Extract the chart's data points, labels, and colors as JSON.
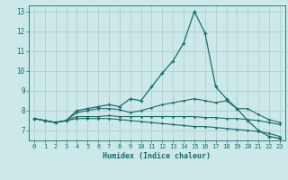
{
  "xlabel": "Humidex (Indice chaleur)",
  "bg_color": "#cce8e8",
  "line_color": "#1a6b6b",
  "grid_color": "#aad0d0",
  "xlim": [
    -0.5,
    23.5
  ],
  "ylim": [
    6.5,
    13.3
  ],
  "xticks": [
    0,
    1,
    2,
    3,
    4,
    5,
    6,
    7,
    8,
    9,
    10,
    11,
    12,
    13,
    14,
    15,
    16,
    17,
    18,
    19,
    20,
    21,
    22,
    23
  ],
  "yticks": [
    7,
    8,
    9,
    10,
    11,
    12,
    13
  ],
  "series_main": [
    7.6,
    7.5,
    7.4,
    7.5,
    8.0,
    8.1,
    8.2,
    8.3,
    8.2,
    8.6,
    8.5,
    9.2,
    9.9,
    10.5,
    11.4,
    13.0,
    11.9,
    9.2,
    8.6,
    8.1,
    7.5,
    7.0,
    6.7,
    6.6
  ],
  "series_other": [
    [
      7.6,
      7.5,
      7.4,
      7.5,
      7.9,
      8.0,
      8.1,
      8.1,
      8.05,
      7.9,
      8.0,
      8.15,
      8.3,
      8.4,
      8.5,
      8.6,
      8.5,
      8.4,
      8.5,
      8.1,
      8.1,
      7.8,
      7.55,
      7.4
    ],
    [
      7.6,
      7.5,
      7.4,
      7.5,
      7.6,
      7.6,
      7.6,
      7.6,
      7.55,
      7.5,
      7.45,
      7.4,
      7.35,
      7.3,
      7.25,
      7.2,
      7.2,
      7.15,
      7.1,
      7.05,
      7.0,
      6.95,
      6.85,
      6.7
    ],
    [
      7.6,
      7.5,
      7.4,
      7.5,
      7.7,
      7.7,
      7.7,
      7.75,
      7.7,
      7.7,
      7.7,
      7.7,
      7.7,
      7.7,
      7.7,
      7.7,
      7.65,
      7.65,
      7.6,
      7.6,
      7.55,
      7.5,
      7.4,
      7.3
    ]
  ]
}
